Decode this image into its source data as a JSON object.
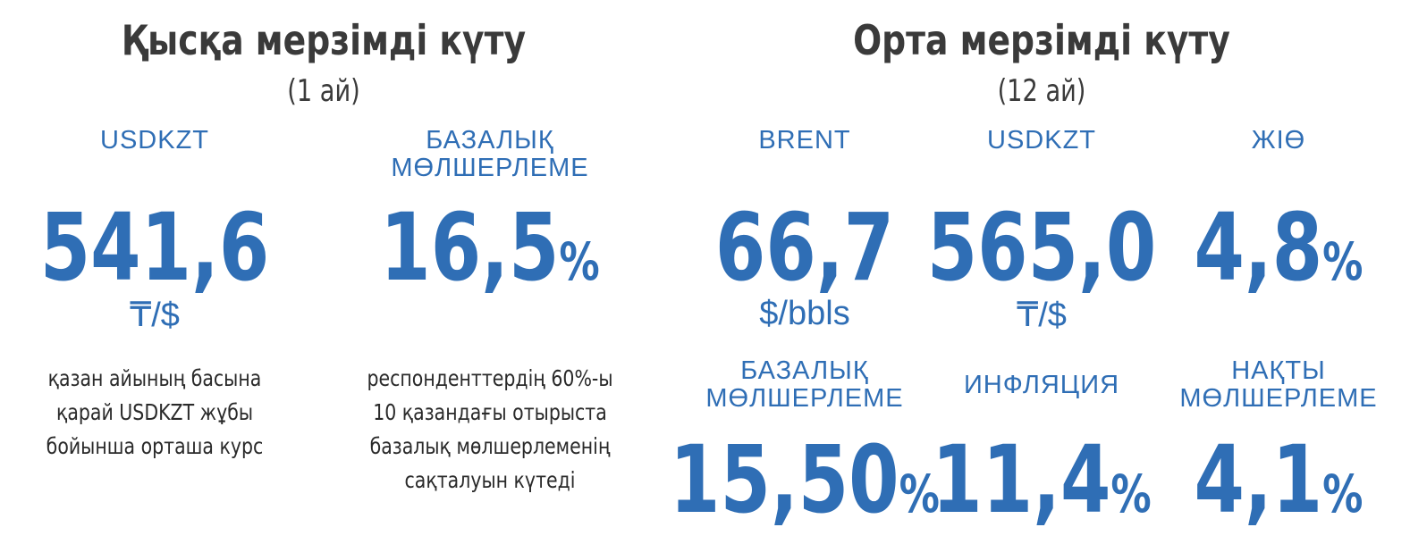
{
  "short_term": {
    "title": "Қысқа мерзімді күту",
    "subtitle": "(1 ай)",
    "items": [
      {
        "label": [
          "USDKZT"
        ],
        "value": "541,6",
        "unit": "₸/$",
        "note": [
          "қазан айының басына",
          "қарай USDKZT жұбы",
          "бойынша орташа курс"
        ]
      },
      {
        "label": [
          "БАЗАЛЫҚ",
          "МӨЛШЕРЛЕМЕ"
        ],
        "value": "16,5",
        "suffix": "%",
        "note": [
          "респонденттердің 60%-ы",
          "10 қазандағы отырыста",
          "базалық мөлшерлеменің",
          "сақталуын күтеді"
        ]
      }
    ]
  },
  "medium_term": {
    "title": "Орта мерзімді күту",
    "subtitle": "(12 ай)",
    "items": [
      {
        "label": [
          "BRENT"
        ],
        "value": "66,7",
        "unit": "$/bbls"
      },
      {
        "label": [
          "USDKZT"
        ],
        "value": "565,0",
        "unit": "₸/$"
      },
      {
        "label": [
          "ЖІӨ"
        ],
        "value": "4,8",
        "suffix": "%"
      },
      {
        "label": [
          "БАЗАЛЫҚ",
          "МӨЛШЕРЛЕМЕ"
        ],
        "value": "15,50",
        "suffix": "%"
      },
      {
        "label": [
          "ИНФЛЯЦИЯ"
        ],
        "value": "11,4",
        "suffix": "%"
      },
      {
        "label": [
          "НАҚТЫ",
          "МӨЛШЕРЛЕМЕ"
        ],
        "value": "4,1",
        "suffix": "%"
      }
    ]
  }
}
